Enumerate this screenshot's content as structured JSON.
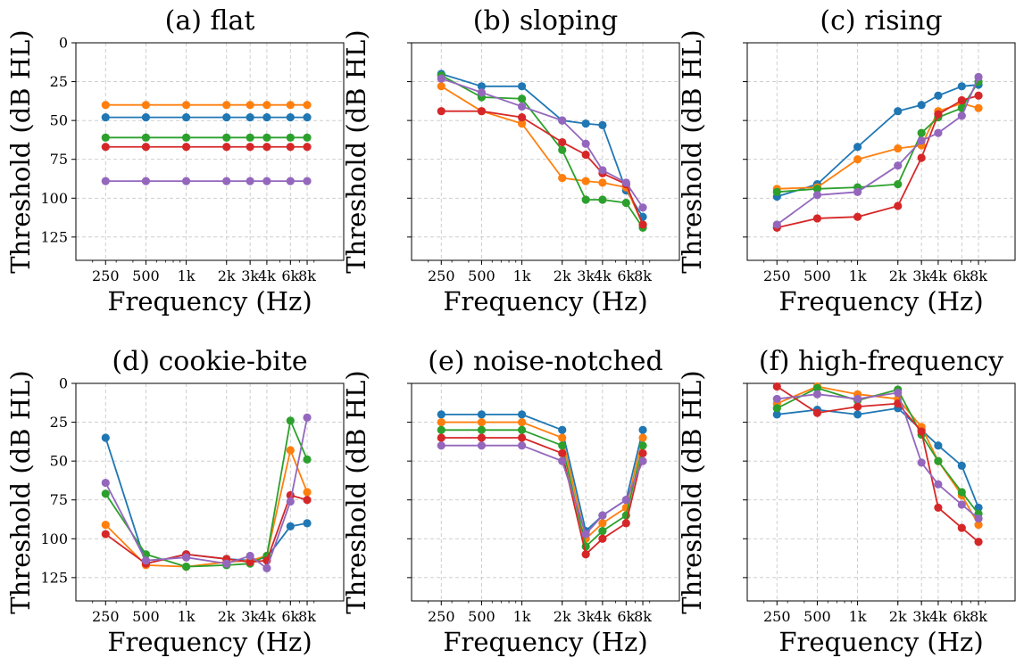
{
  "chart_data": [
    {
      "type": "line",
      "title": "(a) flat",
      "xlabel": "Frequency (Hz)",
      "ylabel": "Threshold (dB HL)",
      "xscale": "log",
      "x": [
        250,
        500,
        1000,
        2000,
        3000,
        4000,
        6000,
        8000
      ],
      "xticklabels": [
        "250",
        "500",
        "1k",
        "2k",
        "3k",
        "4k",
        "6k",
        "8k"
      ],
      "ylim": [
        140,
        0
      ],
      "yticks": [
        0,
        25,
        50,
        75,
        100,
        125
      ],
      "show_yticklabels": true,
      "grid": true,
      "series": [
        {
          "name": "blue",
          "color": "#1f77b4",
          "values": [
            48,
            48,
            48,
            48,
            48,
            48,
            48,
            48
          ]
        },
        {
          "name": "orange",
          "color": "#ff7f0e",
          "values": [
            40,
            40,
            40,
            40,
            40,
            40,
            40,
            40
          ]
        },
        {
          "name": "green",
          "color": "#2ca02c",
          "values": [
            61,
            61,
            61,
            61,
            61,
            61,
            61,
            61
          ]
        },
        {
          "name": "red",
          "color": "#d62728",
          "values": [
            67,
            67,
            67,
            67,
            67,
            67,
            67,
            67
          ]
        },
        {
          "name": "purple",
          "color": "#9467bd",
          "values": [
            89,
            89,
            89,
            89,
            89,
            89,
            89,
            89
          ]
        }
      ]
    },
    {
      "type": "line",
      "title": "(b) sloping",
      "xlabel": "Frequency (Hz)",
      "ylabel": "Threshold (dB HL)",
      "xscale": "log",
      "x": [
        250,
        500,
        1000,
        2000,
        3000,
        4000,
        6000,
        8000
      ],
      "xticklabels": [
        "250",
        "500",
        "1k",
        "2k",
        "3k",
        "4k",
        "6k",
        "8k"
      ],
      "ylim": [
        140,
        0
      ],
      "yticks": [
        0,
        25,
        50,
        75,
        100,
        125
      ],
      "show_yticklabels": false,
      "grid": true,
      "series": [
        {
          "name": "blue",
          "color": "#1f77b4",
          "values": [
            20,
            28,
            28,
            50,
            52,
            53,
            95,
            112
          ]
        },
        {
          "name": "orange",
          "color": "#ff7f0e",
          "values": [
            28,
            44,
            52,
            87,
            89,
            90,
            93,
            117
          ]
        },
        {
          "name": "green",
          "color": "#2ca02c",
          "values": [
            21,
            35,
            36,
            69,
            101,
            101,
            103,
            119
          ]
        },
        {
          "name": "red",
          "color": "#d62728",
          "values": [
            44,
            44,
            48,
            64,
            72,
            84,
            91,
            117
          ]
        },
        {
          "name": "purple",
          "color": "#9467bd",
          "values": [
            23,
            32,
            41,
            50,
            65,
            82,
            90,
            106
          ]
        }
      ]
    },
    {
      "type": "line",
      "title": "(c) rising",
      "xlabel": "Frequency (Hz)",
      "ylabel": "Threshold (dB HL)",
      "xscale": "log",
      "x": [
        250,
        500,
        1000,
        2000,
        3000,
        4000,
        6000,
        8000
      ],
      "xticklabels": [
        "250",
        "500",
        "1k",
        "2k",
        "3k",
        "4k",
        "6k",
        "8k"
      ],
      "ylim": [
        140,
        0
      ],
      "yticks": [
        0,
        25,
        50,
        75,
        100,
        125
      ],
      "show_yticklabels": false,
      "grid": true,
      "series": [
        {
          "name": "blue",
          "color": "#1f77b4",
          "values": [
            99,
            91,
            67,
            44,
            40,
            34,
            28,
            27
          ]
        },
        {
          "name": "orange",
          "color": "#ff7f0e",
          "values": [
            94,
            93,
            75,
            68,
            66,
            44,
            39,
            42
          ]
        },
        {
          "name": "green",
          "color": "#2ca02c",
          "values": [
            96,
            94,
            93,
            91,
            58,
            48,
            42,
            25
          ]
        },
        {
          "name": "red",
          "color": "#d62728",
          "values": [
            119,
            113,
            112,
            105,
            74,
            46,
            37,
            34
          ]
        },
        {
          "name": "purple",
          "color": "#9467bd",
          "values": [
            117,
            98,
            96,
            79,
            63,
            58,
            47,
            22
          ]
        }
      ]
    },
    {
      "type": "line",
      "title": "(d) cookie-bite",
      "xlabel": "Frequency (Hz)",
      "ylabel": "Threshold (dB HL)",
      "xscale": "log",
      "x": [
        250,
        500,
        1000,
        2000,
        3000,
        4000,
        6000,
        8000
      ],
      "xticklabels": [
        "250",
        "500",
        "1k",
        "2k",
        "3k",
        "4k",
        "6k",
        "8k"
      ],
      "ylim": [
        140,
        0
      ],
      "yticks": [
        0,
        25,
        50,
        75,
        100,
        125
      ],
      "show_yticklabels": true,
      "grid": true,
      "series": [
        {
          "name": "blue",
          "color": "#1f77b4",
          "values": [
            35,
            116,
            110,
            113,
            114,
            112,
            92,
            90
          ]
        },
        {
          "name": "orange",
          "color": "#ff7f0e",
          "values": [
            91,
            117,
            118,
            115,
            114,
            111,
            43,
            70
          ]
        },
        {
          "name": "green",
          "color": "#2ca02c",
          "values": [
            71,
            110,
            118,
            117,
            116,
            111,
            24,
            49
          ]
        },
        {
          "name": "red",
          "color": "#d62728",
          "values": [
            97,
            116,
            110,
            113,
            115,
            114,
            72,
            75
          ]
        },
        {
          "name": "purple",
          "color": "#9467bd",
          "values": [
            64,
            114,
            112,
            116,
            111,
            119,
            76,
            22
          ]
        }
      ]
    },
    {
      "type": "line",
      "title": "(e) noise-notched",
      "xlabel": "Frequency (Hz)",
      "ylabel": "Threshold (dB HL)",
      "xscale": "log",
      "x": [
        250,
        500,
        1000,
        2000,
        3000,
        4000,
        6000,
        8000
      ],
      "xticklabels": [
        "250",
        "500",
        "1k",
        "2k",
        "3k",
        "4k",
        "6k",
        "8k"
      ],
      "ylim": [
        140,
        0
      ],
      "yticks": [
        0,
        25,
        50,
        75,
        100,
        125
      ],
      "show_yticklabels": false,
      "grid": true,
      "series": [
        {
          "name": "blue",
          "color": "#1f77b4",
          "values": [
            20,
            20,
            20,
            30,
            95,
            85,
            75,
            30
          ]
        },
        {
          "name": "orange",
          "color": "#ff7f0e",
          "values": [
            25,
            25,
            25,
            35,
            100,
            90,
            80,
            35
          ]
        },
        {
          "name": "green",
          "color": "#2ca02c",
          "values": [
            30,
            30,
            30,
            40,
            105,
            95,
            85,
            40
          ]
        },
        {
          "name": "red",
          "color": "#d62728",
          "values": [
            35,
            35,
            35,
            45,
            110,
            100,
            90,
            45
          ]
        },
        {
          "name": "purple",
          "color": "#9467bd",
          "values": [
            40,
            40,
            40,
            50,
            97,
            85,
            75,
            50
          ]
        }
      ]
    },
    {
      "type": "line",
      "title": "(f) high-frequency",
      "xlabel": "Frequency (Hz)",
      "ylabel": "Threshold (dB HL)",
      "xscale": "log",
      "x": [
        250,
        500,
        1000,
        2000,
        3000,
        4000,
        6000,
        8000
      ],
      "xticklabels": [
        "250",
        "500",
        "1k",
        "2k",
        "3k",
        "4k",
        "6k",
        "8k"
      ],
      "ylim": [
        140,
        0
      ],
      "yticks": [
        0,
        25,
        50,
        75,
        100,
        125
      ],
      "show_yticklabels": false,
      "grid": true,
      "series": [
        {
          "name": "blue",
          "color": "#1f77b4",
          "values": [
            20,
            17,
            20,
            16,
            30,
            40,
            53,
            80
          ]
        },
        {
          "name": "orange",
          "color": "#ff7f0e",
          "values": [
            13,
            2,
            7,
            10,
            28,
            50,
            72,
            91
          ]
        },
        {
          "name": "green",
          "color": "#2ca02c",
          "values": [
            16,
            3,
            11,
            4,
            33,
            50,
            70,
            84
          ]
        },
        {
          "name": "red",
          "color": "#d62728",
          "values": [
            2,
            19,
            15,
            13,
            31,
            80,
            93,
            102
          ]
        },
        {
          "name": "purple",
          "color": "#9467bd",
          "values": [
            10,
            7,
            10,
            6,
            51,
            65,
            78,
            87
          ]
        }
      ]
    }
  ]
}
